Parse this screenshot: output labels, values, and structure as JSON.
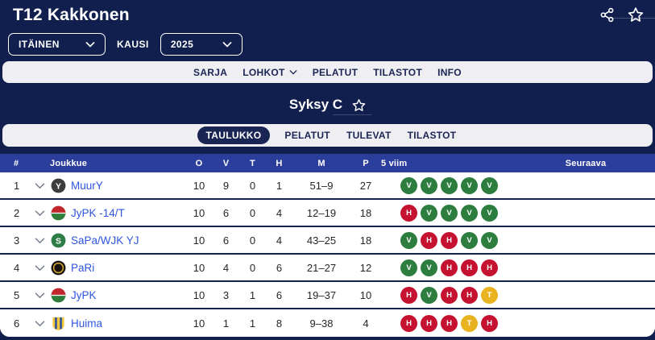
{
  "header": {
    "title": "T12 Kakkonen",
    "icons": [
      "share-icon",
      "favorite-star-icon"
    ]
  },
  "filters": {
    "region": {
      "value": "ITÄINEN"
    },
    "season_label": "KAUSI",
    "season": {
      "value": "2025"
    }
  },
  "nav": {
    "items": [
      {
        "label": "SARJA",
        "has_dropdown": false
      },
      {
        "label": "LOHKOT",
        "has_dropdown": true
      },
      {
        "label": "PELATUT",
        "has_dropdown": false
      },
      {
        "label": "TILASTOT",
        "has_dropdown": false
      },
      {
        "label": "INFO",
        "has_dropdown": false
      }
    ]
  },
  "section": {
    "title": "Syksy C"
  },
  "tabs": {
    "items": [
      "TAULUKKO",
      "PELATUT",
      "TULEVAT",
      "TILASTOT"
    ],
    "active": "TAULUKKO"
  },
  "standings": {
    "columns": {
      "pos": "#",
      "team": "Joukkue",
      "played": "O",
      "wins": "V",
      "draws": "T",
      "losses": "H",
      "goals": "M",
      "points": "P",
      "form": "5 viim",
      "next": "Seuraava"
    },
    "rows": [
      {
        "pos": "1",
        "team": "MuurY",
        "played": "10",
        "wins": "9",
        "draws": "0",
        "losses": "1",
        "goals": "51–9",
        "points": "27",
        "form": [
          "V",
          "V",
          "V",
          "V",
          "V"
        ],
        "next": "",
        "logo": {
          "kind": "circle",
          "bg": "#3d3d3d",
          "fg": "#ffffff",
          "mark": "Y"
        }
      },
      {
        "pos": "2",
        "team": "JyPK -14/T",
        "played": "10",
        "wins": "6",
        "draws": "0",
        "losses": "4",
        "goals": "12–19",
        "points": "18",
        "form": [
          "H",
          "V",
          "V",
          "V",
          "V"
        ],
        "next": "",
        "logo": {
          "kind": "halves",
          "top": "#c0272d",
          "bottom": "#2e7d3a",
          "fg": "#ffffff"
        }
      },
      {
        "pos": "3",
        "team": "SaPa/WJK YJ",
        "played": "10",
        "wins": "6",
        "draws": "0",
        "losses": "4",
        "goals": "43–25",
        "points": "18",
        "form": [
          "V",
          "H",
          "H",
          "V",
          "V"
        ],
        "next": "",
        "logo": {
          "kind": "circle",
          "bg": "#2e7d46",
          "fg": "#ffffff",
          "mark": "S"
        }
      },
      {
        "pos": "4",
        "team": "PaRi",
        "played": "10",
        "wins": "4",
        "draws": "0",
        "losses": "6",
        "goals": "21–27",
        "points": "12",
        "form": [
          "V",
          "V",
          "H",
          "H",
          "H"
        ],
        "next": "",
        "logo": {
          "kind": "ring",
          "bg": "#17130f",
          "ring": "#d2a72e"
        }
      },
      {
        "pos": "5",
        "team": "JyPK",
        "played": "10",
        "wins": "3",
        "draws": "1",
        "losses": "6",
        "goals": "19–37",
        "points": "10",
        "form": [
          "H",
          "V",
          "H",
          "H",
          "T"
        ],
        "next": "",
        "logo": {
          "kind": "halves",
          "top": "#c0272d",
          "bottom": "#2e7d3a",
          "fg": "#ffffff"
        }
      },
      {
        "pos": "6",
        "team": "Huima",
        "played": "10",
        "wins": "1",
        "draws": "1",
        "losses": "8",
        "goals": "9–38",
        "points": "4",
        "form": [
          "H",
          "H",
          "H",
          "T",
          "H"
        ],
        "next": "",
        "logo": {
          "kind": "shield",
          "bg": "#f0c73f",
          "stripe": "#2b4ea0"
        }
      }
    ]
  },
  "form_colors": {
    "V": "#2d7d3f",
    "H": "#c51230",
    "T": "#e8b31e"
  },
  "theme": {
    "page_bg": "#111f4e",
    "table_header_bg": "#2c3e9c",
    "bar_bg": "#efeff3",
    "bar_text": "#1b2553",
    "link_blue": "#2f55e0",
    "row_separator": "#16224e"
  }
}
